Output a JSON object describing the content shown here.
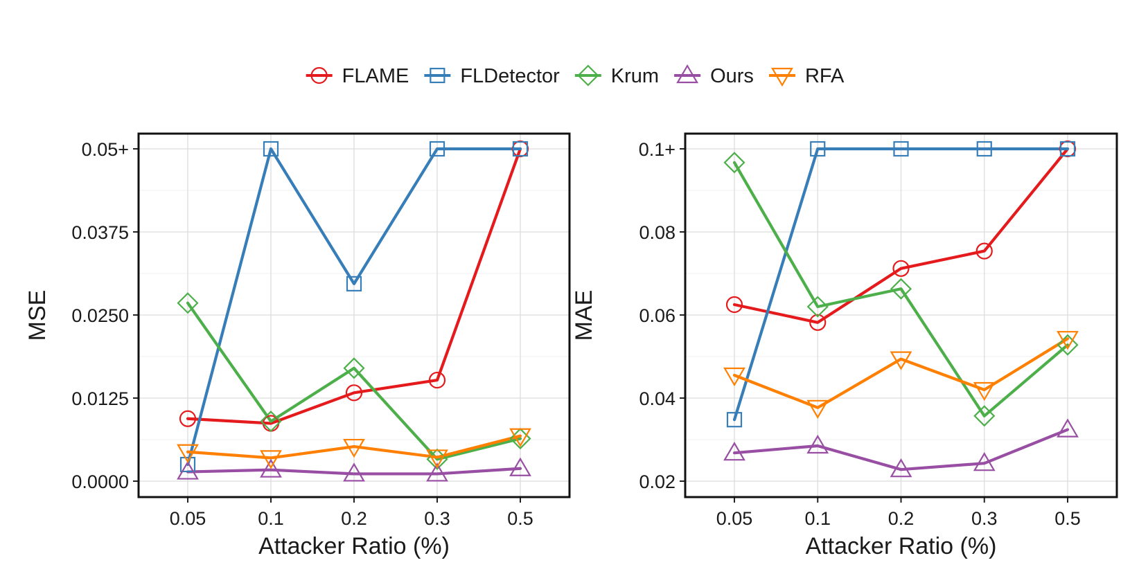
{
  "legend": [
    {
      "name": "FLAME",
      "color": "#e41a1c",
      "marker": "circle"
    },
    {
      "name": "FLDetector",
      "color": "#377eb8",
      "marker": "square"
    },
    {
      "name": "Krum",
      "color": "#4daf4a",
      "marker": "diamond"
    },
    {
      "name": "Ours",
      "color": "#984ea3",
      "marker": "triangle-up"
    },
    {
      "name": "RFA",
      "color": "#ff7f00",
      "marker": "triangle-down"
    }
  ],
  "chart_data": [
    {
      "type": "line",
      "title": "",
      "xlabel": "Attacker Ratio (%)",
      "ylabel": "MSE",
      "categories": [
        "0.05",
        "0.1",
        "0.2",
        "0.3",
        "0.5"
      ],
      "ylim": [
        0,
        0.05
      ],
      "yticks": [
        0,
        0.0125,
        0.025,
        0.0375,
        0.05
      ],
      "ytick_labels": [
        "0.0000",
        "0.0125",
        "0.0250",
        "0.0375",
        "0.05+"
      ],
      "grid": true,
      "series": [
        {
          "name": "FLAME",
          "values": [
            0.0094,
            0.0087,
            0.0133,
            0.0152,
            0.05
          ]
        },
        {
          "name": "FLDetector",
          "values": [
            0.0025,
            0.05,
            0.0297,
            0.05,
            0.05
          ]
        },
        {
          "name": "Krum",
          "values": [
            0.0268,
            0.009,
            0.017,
            0.0033,
            0.0064
          ]
        },
        {
          "name": "Ours",
          "values": [
            0.0014,
            0.0017,
            0.0011,
            0.0011,
            0.0019
          ]
        },
        {
          "name": "RFA",
          "values": [
            0.0044,
            0.0035,
            0.0052,
            0.0036,
            0.0068
          ]
        }
      ]
    },
    {
      "type": "line",
      "title": "",
      "xlabel": "Attacker Ratio (%)",
      "ylabel": "MAE",
      "categories": [
        "0.05",
        "0.1",
        "0.2",
        "0.3",
        "0.5"
      ],
      "ylim": [
        0.02,
        0.1
      ],
      "yticks": [
        0.02,
        0.04,
        0.06,
        0.08,
        0.1
      ],
      "ytick_labels": [
        "0.02",
        "0.04",
        "0.06",
        "0.08",
        "0.1+"
      ],
      "grid": true,
      "series": [
        {
          "name": "FLAME",
          "values": [
            0.0625,
            0.0582,
            0.0712,
            0.0754,
            0.1
          ]
        },
        {
          "name": "FLDetector",
          "values": [
            0.0348,
            0.1,
            0.1,
            0.1,
            0.1
          ]
        },
        {
          "name": "Krum",
          "values": [
            0.0967,
            0.062,
            0.0663,
            0.0357,
            0.0528
          ]
        },
        {
          "name": "Ours",
          "values": [
            0.0268,
            0.0285,
            0.0228,
            0.0243,
            0.0324
          ]
        },
        {
          "name": "RFA",
          "values": [
            0.0455,
            0.0377,
            0.0494,
            0.042,
            0.0543
          ]
        }
      ]
    }
  ]
}
